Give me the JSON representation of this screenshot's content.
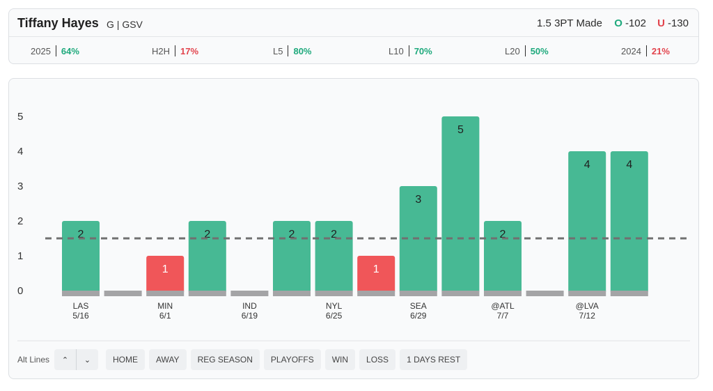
{
  "player": {
    "name": "Tiffany Hayes",
    "position": "G",
    "team": "GSV"
  },
  "prop": {
    "line_label": "1.5 3PT Made",
    "over_letter": "O",
    "over_odds": "-102",
    "under_letter": "U",
    "under_odds": "-130"
  },
  "stats": [
    {
      "label": "2025",
      "value": "64%",
      "status": "green"
    },
    {
      "label": "H2H",
      "value": "17%",
      "status": "red"
    },
    {
      "label": "L5",
      "value": "80%",
      "status": "green"
    },
    {
      "label": "L10",
      "value": "70%",
      "status": "green"
    },
    {
      "label": "L20",
      "value": "50%",
      "status": "green"
    },
    {
      "label": "2024",
      "value": "21%",
      "status": "red"
    }
  ],
  "colors": {
    "over": "#47b994",
    "under": "#f05659",
    "base": "#a4a4a6",
    "line": "#707070"
  },
  "chart_data": {
    "type": "bar",
    "line_value": 1.5,
    "ylim": [
      0,
      5
    ],
    "yticks": [
      0,
      1,
      2,
      3,
      4,
      5
    ],
    "values": [
      2,
      0,
      1,
      2,
      0,
      2,
      2,
      1,
      3,
      5,
      2,
      0,
      4,
      4
    ],
    "tick_labels": [
      {
        "index": 0,
        "opponent": "LAS",
        "date": "5/16"
      },
      {
        "index": 2,
        "opponent": "MIN",
        "date": "6/1"
      },
      {
        "index": 4,
        "opponent": "IND",
        "date": "6/19"
      },
      {
        "index": 6,
        "opponent": "NYL",
        "date": "6/25"
      },
      {
        "index": 8,
        "opponent": "SEA",
        "date": "6/29"
      },
      {
        "index": 10,
        "opponent": "@ATL",
        "date": "7/7"
      },
      {
        "index": 12,
        "opponent": "@LVA",
        "date": "7/12"
      }
    ]
  },
  "controls": {
    "alt_lines_label": "Alt Lines",
    "filters": [
      "HOME",
      "AWAY",
      "REG SEASON",
      "PLAYOFFS",
      "WIN",
      "LOSS",
      "1 DAYS REST"
    ]
  }
}
